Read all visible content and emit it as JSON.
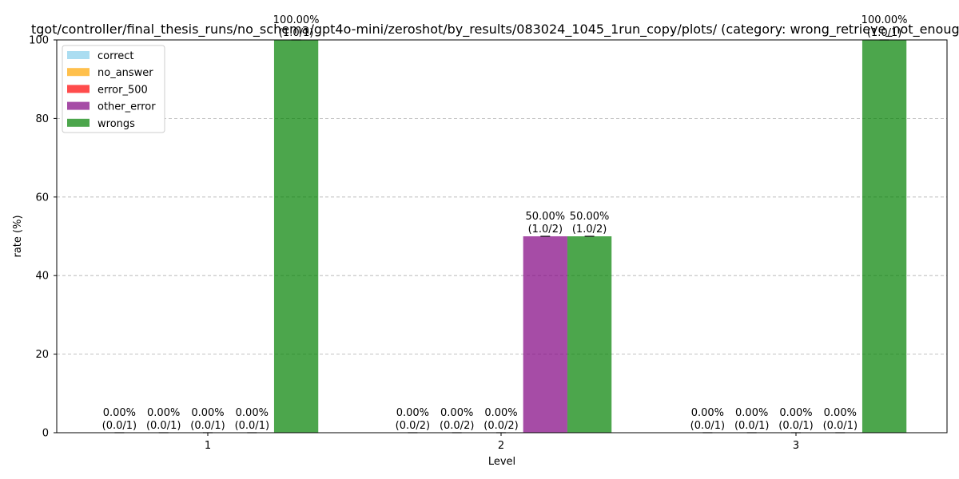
{
  "chart_data": {
    "type": "bar",
    "title": "tgot/controller/final_thesis_runs/no_schema/gpt4o-mini/zeroshot/by_results/083024_1045_1run_copy/plots/ (category: wrong_retrieve_not_enough)",
    "xlabel": "Level",
    "ylabel": "rate (%)",
    "ylim": [
      0,
      100
    ],
    "yticks": [
      0,
      20,
      40,
      60,
      80,
      100
    ],
    "grid": true,
    "legend_position": "top-left",
    "categories": [
      "1",
      "2",
      "3"
    ],
    "series": [
      {
        "name": "correct",
        "color": "#87CEEB",
        "values": [
          0,
          0,
          0
        ],
        "labels": [
          [
            "0.00%",
            "(0.0/1)"
          ],
          [
            "0.00%",
            "(0.0/2)"
          ],
          [
            "0.00%",
            "(0.0/1)"
          ]
        ]
      },
      {
        "name": "no_answer",
        "color": "#FFA500",
        "values": [
          0,
          0,
          0
        ],
        "labels": [
          [
            "0.00%",
            "(0.0/1)"
          ],
          [
            "0.00%",
            "(0.0/2)"
          ],
          [
            "0.00%",
            "(0.0/1)"
          ]
        ]
      },
      {
        "name": "error_500",
        "color": "#FF0000",
        "values": [
          0,
          0,
          0
        ],
        "labels": [
          [
            "0.00%",
            "(0.0/1)"
          ],
          [
            "0.00%",
            "(0.0/2)"
          ],
          [
            "0.00%",
            "(0.0/1)"
          ]
        ]
      },
      {
        "name": "other_error",
        "color": "#800080",
        "values": [
          0,
          50,
          0
        ],
        "labels": [
          [
            "0.00%",
            "(0.0/1)"
          ],
          [
            "50.00%",
            "(1.0/2)"
          ],
          [
            "0.00%",
            "(0.0/1)"
          ]
        ]
      },
      {
        "name": "wrongs",
        "color": "#008000",
        "values": [
          100,
          50,
          100
        ],
        "labels": [
          [
            "100.00%",
            "(1.0/1)"
          ],
          [
            "50.00%",
            "(1.0/2)"
          ],
          [
            "100.00%",
            "(1.0/1)"
          ]
        ]
      }
    ]
  }
}
